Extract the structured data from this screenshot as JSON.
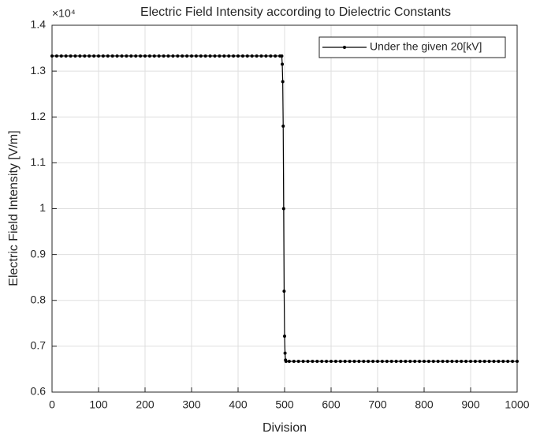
{
  "chart_data": {
    "type": "line",
    "title": "Electric Field Intensity according to Dielectric Constants",
    "y_exponent_label": "×10⁴",
    "xlabel": "Division",
    "ylabel": "Electric Field Intensity [V/m]",
    "xlim": [
      0,
      1000
    ],
    "xticks": [
      0,
      100,
      200,
      300,
      400,
      500,
      600,
      700,
      800,
      900,
      1000
    ],
    "ylim": [
      0.6,
      1.4
    ],
    "yticks": [
      0.6,
      0.7,
      0.8,
      0.9,
      1,
      1.1,
      1.2,
      1.3,
      1.4
    ],
    "grid": true,
    "legend": "top-right",
    "series": [
      {
        "name": "Under the given 20[kV]",
        "color": "#000000",
        "x": [
          0,
          10,
          20,
          30,
          40,
          50,
          60,
          70,
          80,
          90,
          100,
          110,
          120,
          130,
          140,
          150,
          160,
          170,
          180,
          190,
          200,
          210,
          220,
          230,
          240,
          250,
          260,
          270,
          280,
          290,
          300,
          310,
          320,
          330,
          340,
          350,
          360,
          370,
          380,
          390,
          400,
          410,
          420,
          430,
          440,
          450,
          460,
          470,
          480,
          490,
          494,
          495,
          496,
          497,
          498,
          499,
          500,
          501,
          502,
          503,
          510,
          520,
          530,
          540,
          550,
          560,
          570,
          580,
          590,
          600,
          610,
          620,
          630,
          640,
          650,
          660,
          670,
          680,
          690,
          700,
          710,
          720,
          730,
          740,
          750,
          760,
          770,
          780,
          790,
          800,
          810,
          820,
          830,
          840,
          850,
          860,
          870,
          880,
          890,
          900,
          910,
          920,
          930,
          940,
          950,
          960,
          970,
          980,
          990,
          1000
        ],
        "values": [
          1.333,
          1.333,
          1.333,
          1.333,
          1.333,
          1.333,
          1.333,
          1.333,
          1.333,
          1.333,
          1.333,
          1.333,
          1.333,
          1.333,
          1.333,
          1.333,
          1.333,
          1.333,
          1.333,
          1.333,
          1.333,
          1.333,
          1.333,
          1.333,
          1.333,
          1.333,
          1.333,
          1.333,
          1.333,
          1.333,
          1.333,
          1.333,
          1.333,
          1.333,
          1.333,
          1.333,
          1.333,
          1.333,
          1.333,
          1.333,
          1.333,
          1.333,
          1.333,
          1.333,
          1.333,
          1.333,
          1.333,
          1.333,
          1.333,
          1.333,
          1.333,
          1.315,
          1.277,
          1.18,
          1.0,
          0.82,
          0.722,
          0.685,
          0.67,
          0.667,
          0.667,
          0.667,
          0.667,
          0.667,
          0.667,
          0.667,
          0.667,
          0.667,
          0.667,
          0.667,
          0.667,
          0.667,
          0.667,
          0.667,
          0.667,
          0.667,
          0.667,
          0.667,
          0.667,
          0.667,
          0.667,
          0.667,
          0.667,
          0.667,
          0.667,
          0.667,
          0.667,
          0.667,
          0.667,
          0.667,
          0.667,
          0.667,
          0.667,
          0.667,
          0.667,
          0.667,
          0.667,
          0.667,
          0.667,
          0.667,
          0.667,
          0.667,
          0.667,
          0.667,
          0.667,
          0.667,
          0.667,
          0.667,
          0.667,
          0.667
        ]
      }
    ]
  }
}
